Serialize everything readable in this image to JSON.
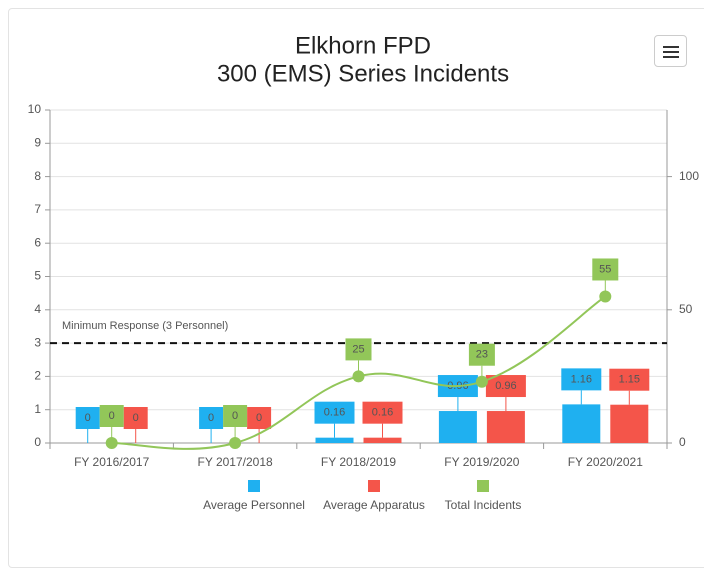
{
  "chart_data": {
    "type": "bar",
    "title": "Elkhorn FPD",
    "subtitle": "300 (EMS) Series Incidents",
    "categories": [
      "FY 2016/2017",
      "FY 2017/2018",
      "FY 2018/2019",
      "FY 2019/2020",
      "FY 2020/2021"
    ],
    "series": [
      {
        "name": "Average Personnel",
        "color": "#1fb0f0",
        "type": "bar",
        "values": [
          0,
          0,
          0.16,
          0.96,
          1.16
        ]
      },
      {
        "name": "Average Apparatus",
        "color": "#f4554a",
        "type": "bar",
        "values": [
          0,
          0,
          0.16,
          0.96,
          1.15
        ]
      },
      {
        "name": "Total Incidents",
        "color": "#92c659",
        "type": "line",
        "axis": "y2",
        "values": [
          0,
          0,
          25,
          23,
          55
        ]
      }
    ],
    "ylim": [
      0,
      10
    ],
    "yticks": [
      0,
      1,
      2,
      3,
      4,
      5,
      6,
      7,
      8,
      9,
      10
    ],
    "y2lim": [
      0,
      125
    ],
    "y2ticks": [
      0,
      50,
      100
    ],
    "annotations": [
      {
        "y": 3,
        "label": "Minimum Response (3 Personnel)"
      }
    ],
    "grid": true,
    "legend": "bottom"
  }
}
